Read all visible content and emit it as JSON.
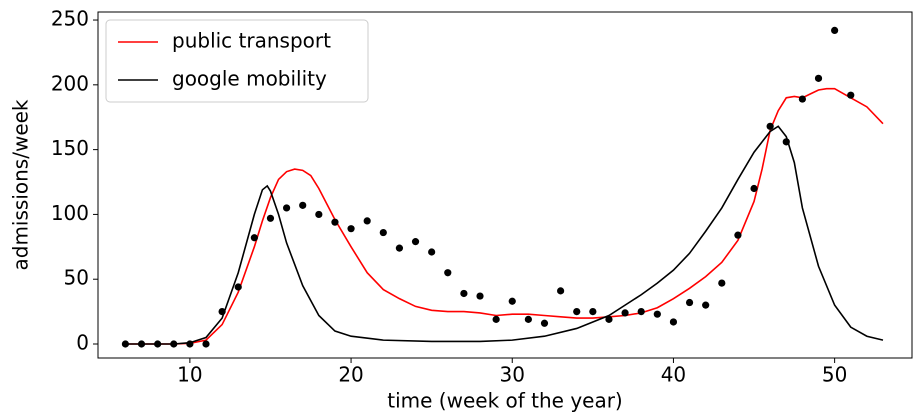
{
  "chart_data": {
    "type": "line",
    "xlabel": "time (week of the year)",
    "ylabel": "admissions/week",
    "xlim": [
      4.3,
      54.8
    ],
    "ylim": [
      -10.8,
      256.2
    ],
    "xticks": [
      10,
      20,
      30,
      40,
      50
    ],
    "yticks": [
      0,
      50,
      100,
      150,
      200,
      250
    ],
    "grid": false,
    "legend": "upper-left",
    "series": [
      {
        "name": "public transport",
        "color": "#ff0000",
        "x": [
          6,
          7,
          8,
          9,
          10,
          11,
          12,
          13,
          14,
          14.5,
          15,
          15.5,
          16,
          16.5,
          17,
          17.5,
          18,
          19,
          20,
          21,
          22,
          23,
          24,
          25,
          26,
          27,
          28,
          29,
          30,
          31,
          32,
          33,
          34,
          35,
          36,
          37,
          38,
          39,
          40,
          41,
          42,
          43,
          44,
          45,
          45.5,
          46,
          46.5,
          47,
          47.5,
          48,
          48.5,
          49,
          49.5,
          50,
          51,
          52,
          53
        ],
        "values": [
          0,
          0,
          0,
          0,
          0.5,
          3,
          15,
          40,
          75,
          95,
          113,
          127,
          133,
          135,
          134,
          130,
          120,
          96,
          75,
          55,
          42,
          35,
          29,
          26,
          25,
          25,
          24,
          22,
          23,
          23,
          22,
          21,
          20,
          20,
          21,
          22,
          24,
          28,
          35,
          43,
          52,
          63,
          80,
          110,
          135,
          165,
          180,
          190,
          191,
          190,
          193,
          196,
          197,
          197,
          190,
          183,
          170
        ]
      },
      {
        "name": "google mobility",
        "color": "#000000",
        "x": [
          6,
          9,
          10,
          11,
          12,
          13,
          14,
          14.5,
          14.8,
          15,
          15.5,
          16,
          17,
          18,
          19,
          20,
          22,
          25,
          28,
          30,
          32,
          34,
          36,
          37,
          38,
          39,
          40,
          41,
          42,
          43,
          44,
          45,
          46,
          46.5,
          47,
          47.5,
          48,
          49,
          50,
          51,
          52,
          53
        ],
        "values": [
          0,
          0,
          1,
          5,
          20,
          55,
          100,
          119,
          122,
          118,
          100,
          78,
          45,
          22,
          10,
          6,
          3,
          2,
          2,
          3,
          6,
          12,
          22,
          30,
          38,
          47,
          57,
          70,
          87,
          105,
          127,
          148,
          164,
          168,
          160,
          140,
          105,
          60,
          30,
          13,
          6,
          3
        ]
      }
    ],
    "points": {
      "color": "#000000",
      "x": [
        6,
        7,
        8,
        9,
        10,
        11,
        12,
        13,
        14,
        15,
        16,
        17,
        18,
        19,
        20,
        21,
        22,
        23,
        24,
        25,
        26,
        27,
        28,
        29,
        30,
        31,
        32,
        33,
        34,
        35,
        36,
        37,
        38,
        39,
        40,
        41,
        42,
        43,
        44,
        45,
        46,
        47,
        48,
        49,
        50,
        51
      ],
      "values": [
        0,
        0,
        0,
        0,
        0,
        0,
        25,
        44,
        82,
        97,
        105,
        107,
        100,
        94,
        89,
        95,
        86,
        74,
        79,
        71,
        55,
        39,
        37,
        19,
        33,
        19,
        16,
        41,
        25,
        25,
        19,
        24,
        25,
        23,
        17,
        32,
        30,
        47,
        84,
        120,
        168,
        156,
        189,
        205,
        242,
        192
      ]
    }
  }
}
